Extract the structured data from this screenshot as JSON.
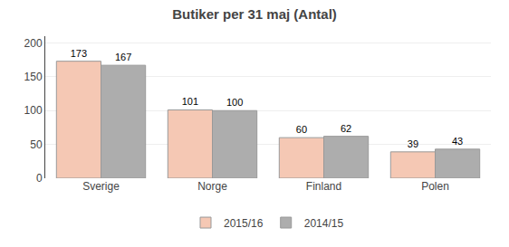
{
  "chart_data": {
    "type": "bar",
    "title": "Butiker per 31 maj (Antal)",
    "categories": [
      "Sverige",
      "Norge",
      "Finland",
      "Polen"
    ],
    "series": [
      {
        "name": "2015/16",
        "color": "#f5c8b4",
        "values": [
          173,
          101,
          60,
          39
        ]
      },
      {
        "name": "2014/15",
        "color": "#adadad",
        "values": [
          167,
          100,
          62,
          43
        ]
      }
    ],
    "ylim": [
      0,
      210
    ],
    "yticks": [
      0,
      50,
      100,
      150,
      200
    ],
    "grid": true,
    "legend": "bottom",
    "data_labels": true
  }
}
